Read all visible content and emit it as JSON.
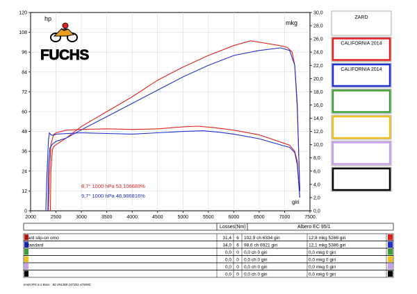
{
  "chart_data": {
    "type": "line",
    "left_axis_label": "hp",
    "right_axis_label": "mkg",
    "x_axis_label": "giri",
    "x_ticks": [
      "2000",
      "2500",
      "3000",
      "3500",
      "4000",
      "4500",
      "5000",
      "5500",
      "6000",
      "6500",
      "7000",
      "7500"
    ],
    "xlim": [
      2000,
      7500
    ],
    "left_ticks": [
      "0",
      "12",
      "24",
      "36",
      "48",
      "60",
      "72",
      "84",
      "96",
      "108",
      "120"
    ],
    "ylim_left": [
      0,
      120
    ],
    "right_ticks": [
      "0,0",
      "2,0",
      "4,0",
      "6,0",
      "8,0",
      "10,0",
      "12,0",
      "14,0",
      "16,0",
      "18,0",
      "20,0",
      "22,0",
      "24,0",
      "26,0",
      "28,0",
      "30,0"
    ],
    "ylim_right": [
      0,
      30
    ],
    "grid": true,
    "series": [
      {
        "name": "Zard slip-on omo",
        "color": "#e02020",
        "hp": {
          "x": [
            2390,
            2400,
            2430,
            2460,
            2500,
            2700,
            3000,
            3500,
            4000,
            4500,
            5000,
            5500,
            6000,
            6334,
            6600,
            6900,
            7050,
            7150,
            7200,
            7250,
            7300
          ],
          "y": [
            0,
            24,
            37,
            39,
            40,
            44,
            51,
            60,
            69,
            79,
            87,
            94,
            100,
            102.9,
            101.5,
            100,
            99,
            96,
            88,
            62,
            12
          ]
        },
        "torque": {
          "x": [
            2350,
            2370,
            2400,
            2450,
            2500,
            2700,
            3000,
            3500,
            4000,
            4500,
            5000,
            5286,
            5600,
            6000,
            6500,
            7000,
            7100,
            7200,
            7250,
            7300
          ],
          "y": [
            0,
            5,
            10,
            11.5,
            11.8,
            12.2,
            12.3,
            12.4,
            12.3,
            12.4,
            12.7,
            12.8,
            12.6,
            12.2,
            11.5,
            10.2,
            9.9,
            9.0,
            7.5,
            2.0
          ]
        },
        "annotation": "8,7° 1000 hPa  53,106689%"
      },
      {
        "name": "Standard",
        "color": "#2030d0",
        "hp": {
          "x": [
            2340,
            2350,
            2380,
            2420,
            2460,
            2500,
            2700,
            3000,
            3500,
            4000,
            4500,
            5000,
            5500,
            6000,
            6500,
            6921,
            7100,
            7200,
            7250,
            7300
          ],
          "y": [
            0,
            26,
            38,
            40,
            41,
            42,
            44,
            49,
            57,
            65,
            73,
            81,
            88,
            94,
            97,
            98.6,
            97,
            88,
            65,
            12
          ]
        },
        "torque": {
          "x": [
            2300,
            2320,
            2350,
            2370,
            2400,
            2450,
            2500,
            3000,
            3500,
            4000,
            4500,
            5000,
            5386,
            5700,
            6000,
            6500,
            7000,
            7100,
            7200,
            7250,
            7300
          ],
          "y": [
            0,
            5,
            10.5,
            11.8,
            11.5,
            11.4,
            11.6,
            11.8,
            11.7,
            11.6,
            11.8,
            12.0,
            12.1,
            11.9,
            11.6,
            10.9,
            9.8,
            9.6,
            8.8,
            7,
            2
          ]
        },
        "annotation": "9,7° 1000 hPa  48,986816%"
      }
    ]
  },
  "header": {
    "logo_text": "FUCHS"
  },
  "legend": {
    "boxes": [
      {
        "label": "ZARD",
        "color": ""
      },
      {
        "label": "CALIFORNIA 2014",
        "color": "#e02020"
      },
      {
        "label": "CALIFORNIA 2014",
        "color": "#2030d0"
      },
      {
        "label": "",
        "color": "#3aa035"
      },
      {
        "label": "",
        "color": "#f0c020"
      },
      {
        "label": "",
        "color": "#c8a0e8"
      },
      {
        "label": "",
        "color": "#000000"
      }
    ]
  },
  "table": {
    "losses_header": "Losses(Nm)",
    "meta_header": "Albero EC 95/1",
    "rows": [
      {
        "name": "Zard slip-on omo",
        "loss": "31,4",
        "n": "6",
        "power": "102,9 ch 6334 giri",
        "torque": "12,8 mkg 5286 giri",
        "color": "#e02020"
      },
      {
        "name": "Standard",
        "loss": "34,0",
        "n": "6",
        "power": "98,6 ch 6921 giri",
        "torque": "12,1 mkg 5386 giri",
        "color": "#2030d0"
      },
      {
        "name": "",
        "loss": "0,0",
        "n": "0",
        "power": "0,0 ch 0 giri",
        "torque": "0,0 mkg 0 giri",
        "color": "#3aa035"
      },
      {
        "name": "",
        "loss": "0,0",
        "n": "0",
        "power": "0,0 ch 0 giri",
        "torque": "0,0 mkg 0 giri",
        "color": "#f0c020"
      },
      {
        "name": "",
        "loss": "0,0",
        "n": "0",
        "power": "0,0 ch 0 giri",
        "torque": "0,0 mkg 0 giri",
        "color": "#c8a0e8"
      },
      {
        "name": "",
        "loss": "0,0",
        "n": "0",
        "power": "0,0 ch 0 giri",
        "torque": "0,0 mkg 0 giri",
        "color": "#000000"
      }
    ]
  },
  "footer": {
    "software": "KHEOPS 6.1  Banc : 80-391288-247301-475090"
  }
}
